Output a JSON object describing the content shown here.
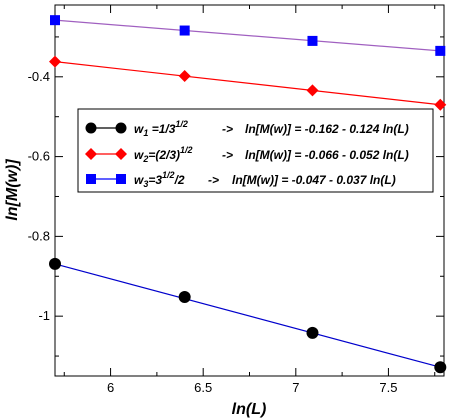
{
  "chart_data": {
    "type": "scatter",
    "xlabel": "ln(L)",
    "ylabel": "ln[M(w)]",
    "xlim": [
      5.7,
      7.8
    ],
    "ylim": [
      -1.15,
      -0.22
    ],
    "x_ticks": [
      6,
      6.5,
      7,
      7.5
    ],
    "x_tick_labels": [
      "6",
      "6.5",
      "7",
      "7.5"
    ],
    "y_ticks": [
      -1,
      -0.8,
      -0.6,
      -0.4
    ],
    "y_tick_labels": [
      "-1",
      "-0.8",
      "-0.6",
      "-0.4"
    ],
    "grid": false,
    "legend_placement": "center",
    "series": [
      {
        "id": "w1",
        "marker": "circle",
        "point_color": "#000000",
        "line_color": "#0000cc",
        "x": [
          5.7,
          6.4,
          7.09,
          7.78
        ],
        "y": [
          -0.869,
          -0.952,
          -1.042,
          -1.128
        ],
        "fit": {
          "intercept": -0.162,
          "slope": -0.124
        },
        "legend": {
          "w": "w",
          "sub": "1",
          "eq": " =1/3",
          "sup": "1/2",
          "arrow": "->",
          "formula": "ln[M(w)] = -0.162 - 0.124  ln(L)"
        }
      },
      {
        "id": "w2",
        "marker": "diamond",
        "point_color": "#ff0000",
        "line_color": "#ff0000",
        "x": [
          5.7,
          6.4,
          7.09,
          7.78
        ],
        "y": [
          -0.362,
          -0.398,
          -0.434,
          -0.47
        ],
        "fit": {
          "intercept": -0.066,
          "slope": -0.052
        },
        "legend": {
          "w": "w",
          "sub": "2",
          "eq": "=(2/3)",
          "sup": "1/2",
          "arrow": "->",
          "formula": "ln[M(w)] = -0.066 - 0.052 ln(L)"
        }
      },
      {
        "id": "w3",
        "marker": "square",
        "point_color": "#0000ff",
        "line_color": "#a060c0",
        "x": [
          5.7,
          6.4,
          7.09,
          7.78
        ],
        "y": [
          -0.258,
          -0.284,
          -0.31,
          -0.335
        ],
        "fit": {
          "intercept": -0.047,
          "slope": -0.037
        },
        "legend": {
          "w": "w",
          "sub": "3",
          "eq": "=3",
          "sup": "1/2",
          "tail": "/2",
          "arrow": "->",
          "formula": "ln[M(w)] = -0.047 - 0.037 ln(L)"
        }
      }
    ]
  }
}
